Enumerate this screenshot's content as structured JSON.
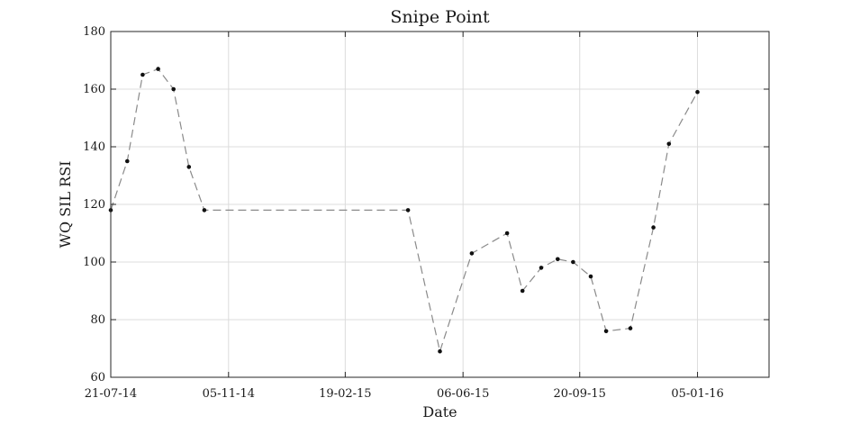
{
  "chart_data": {
    "type": "line",
    "title": "Snipe Point",
    "xlabel": "Date",
    "ylabel": "WQ SIL RSI",
    "x_ticks": [
      {
        "date": "2014-07-21",
        "label": "21-07-14"
      },
      {
        "date": "2014-11-05",
        "label": "05-11-14"
      },
      {
        "date": "2015-02-19",
        "label": "19-02-15"
      },
      {
        "date": "2015-06-06",
        "label": "06-06-15"
      },
      {
        "date": "2015-09-20",
        "label": "20-09-15"
      },
      {
        "date": "2016-01-05",
        "label": "05-01-16"
      }
    ],
    "xlim": [
      "2014-07-21",
      "2016-03-10"
    ],
    "ylim": [
      60,
      180
    ],
    "y_ticks": [
      60,
      80,
      100,
      120,
      140,
      160,
      180
    ],
    "grid": true,
    "series": [
      {
        "color": "#8a8a8a",
        "marker_color": "#111111",
        "x": [
          "2014-07-21",
          "2014-08-05",
          "2014-08-19",
          "2014-09-02",
          "2014-09-16",
          "2014-09-30",
          "2014-10-14",
          "2015-04-17",
          "2015-05-16",
          "2015-06-14",
          "2015-07-16",
          "2015-07-30",
          "2015-08-16",
          "2015-08-31",
          "2015-09-14",
          "2015-09-30",
          "2015-10-14",
          "2015-11-05",
          "2015-11-26",
          "2015-12-10",
          "2016-01-05"
        ],
        "y": [
          118,
          135,
          165,
          167,
          160,
          133,
          118,
          118,
          69,
          103,
          110,
          90,
          98,
          101,
          100,
          95,
          76,
          77,
          112,
          141,
          159
        ]
      }
    ]
  }
}
